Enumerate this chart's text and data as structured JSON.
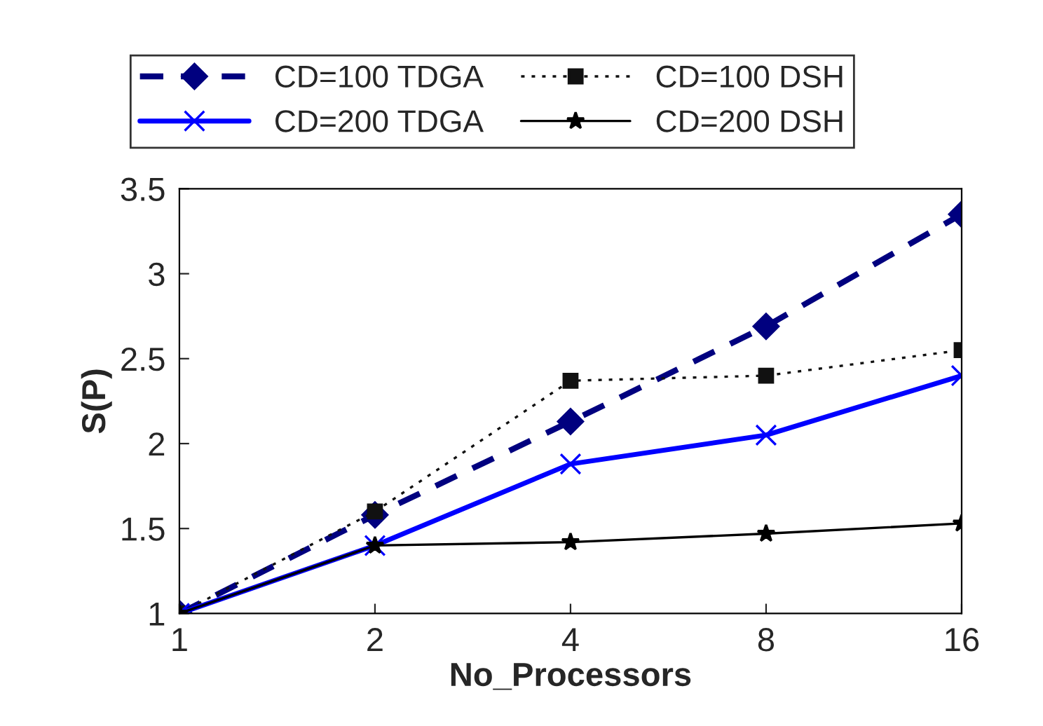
{
  "chart_data": {
    "type": "line",
    "xlabel": "No_Processors",
    "ylabel": "S(P)",
    "categories": [
      "1",
      "2",
      "4",
      "8",
      "16"
    ],
    "series": [
      {
        "name": "CD=100 TDGA",
        "color": "#00007f",
        "marker": "diamond",
        "line_style": "dashed",
        "values": [
          1,
          1.58,
          2.13,
          2.69,
          3.35
        ]
      },
      {
        "name": "CD=100 DSH",
        "color": "#111111",
        "marker": "square",
        "line_style": "dotted",
        "values": [
          1,
          1.6,
          2.37,
          2.4,
          2.55
        ]
      },
      {
        "name": "CD=200 TDGA",
        "color": "#0000ff",
        "marker": "cross",
        "line_style": "solid",
        "values": [
          1,
          1.4,
          1.88,
          2.05,
          2.4
        ]
      },
      {
        "name": "CD=200 DSH",
        "color": "#000000",
        "marker": "star",
        "line_style": "solid",
        "values": [
          1,
          1.4,
          1.42,
          1.47,
          1.53
        ]
      }
    ],
    "ylim": [
      1,
      3.5
    ],
    "yticks": [
      1,
      1.5,
      2,
      2.5,
      3,
      3.5
    ],
    "grid": false,
    "legend": "top"
  }
}
